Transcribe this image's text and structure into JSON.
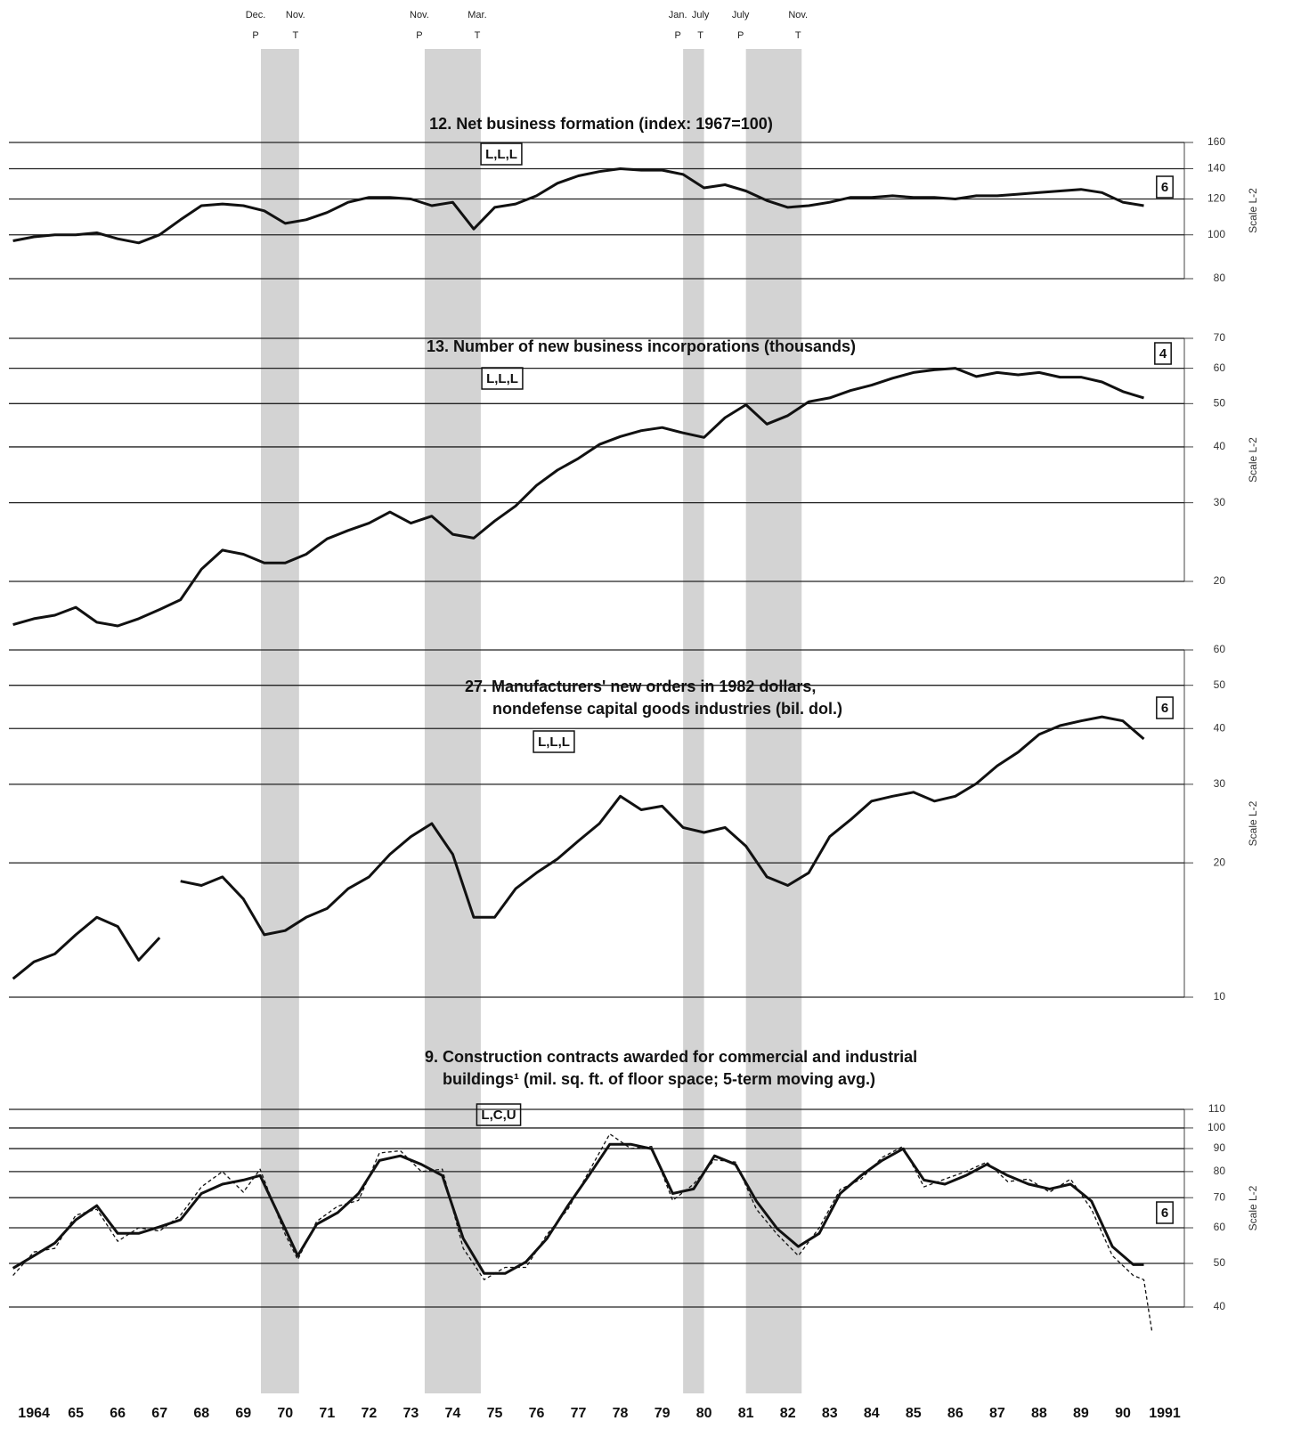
{
  "x_axis": {
    "xlim": [
      1963.86,
      1991.5
    ],
    "xticks": [
      1964,
      {
        "value": 1965,
        "label": "65"
      },
      {
        "value": 1966,
        "label": "66"
      },
      {
        "value": 1967,
        "label": "67"
      },
      {
        "value": 1968,
        "label": "68"
      },
      {
        "value": 1969,
        "label": "69"
      },
      {
        "value": 1970,
        "label": "70"
      },
      {
        "value": 1971,
        "label": "71"
      },
      {
        "value": 1972,
        "label": "72"
      },
      {
        "value": 1973,
        "label": "73"
      },
      {
        "value": 1974,
        "label": "74"
      },
      {
        "value": 1975,
        "label": "75"
      },
      {
        "value": 1976,
        "label": "76"
      },
      {
        "value": 1977,
        "label": "77"
      },
      {
        "value": 1978,
        "label": "78"
      },
      {
        "value": 1979,
        "label": "79"
      },
      {
        "value": 1980,
        "label": "80"
      },
      {
        "value": 1981,
        "label": "81"
      },
      {
        "value": 1982,
        "label": "82"
      },
      {
        "value": 1983,
        "label": "83"
      },
      {
        "value": 1984,
        "label": "84"
      },
      {
        "value": 1985,
        "label": "85"
      },
      {
        "value": 1986,
        "label": "86"
      },
      {
        "value": 1987,
        "label": "87"
      },
      {
        "value": 1988,
        "label": "88"
      },
      {
        "value": 1989,
        "label": "89"
      },
      {
        "value": 1990,
        "label": "90"
      },
      1991
    ]
  },
  "recessions": [
    {
      "peak": "Dec.",
      "peak_code": "P",
      "trough": "Nov.",
      "trough_code": "T",
      "start": 1969.92,
      "end": 1970.83
    },
    {
      "peak": "Nov.",
      "peak_code": "P",
      "trough": "Mar.",
      "trough_code": "T",
      "start": 1973.83,
      "end": 1975.17
    },
    {
      "peak": "Jan.",
      "peak_code": "P",
      "trough": "July",
      "trough_code": "T",
      "start": 1980.0,
      "end": 1980.5
    },
    {
      "peak": "July",
      "peak_code": "P",
      "trough": "Nov.",
      "trough_code": "T",
      "start": 1981.5,
      "end": 1982.83
    }
  ],
  "chart_data": [
    {
      "type": "line",
      "title": [
        "12. Net business formation (index: 1967=100)"
      ],
      "code": "L,L,L",
      "number": "6",
      "y_label": "Scale L-2",
      "log_scale": true,
      "ylim": [
        80,
        160
      ],
      "yticks": [
        80,
        100,
        120,
        140,
        160
      ],
      "grid": true,
      "series": [
        {
          "color": "#111111",
          "dashed": false,
          "x": [
            1964,
            1964.5,
            1965,
            1965.5,
            1966,
            1966.5,
            1967,
            1967.5,
            1968,
            1968.5,
            1969,
            1969.5,
            1970,
            1970.5,
            1971,
            1971.5,
            1972,
            1972.5,
            1973,
            1973.5,
            1974,
            1974.5,
            1975,
            1975.5,
            1976,
            1976.5,
            1977,
            1977.5,
            1978,
            1978.5,
            1979,
            1979.5,
            1980,
            1980.5,
            1981,
            1981.5,
            1982,
            1982.5,
            1983,
            1983.5,
            1984,
            1984.5,
            1985,
            1985.5,
            1986,
            1986.5,
            1987,
            1987.5,
            1988,
            1988.5,
            1989,
            1989.5,
            1990,
            1990.5,
            1991
          ],
          "values": [
            97,
            99,
            100,
            100,
            101,
            98,
            96,
            100,
            108,
            116,
            117,
            116,
            113,
            106,
            108,
            112,
            118,
            121,
            121,
            120,
            116,
            118,
            103,
            115,
            117,
            122,
            130,
            135,
            138,
            140,
            139,
            139,
            136,
            127,
            129,
            125,
            119,
            115,
            116,
            118,
            121,
            121,
            122,
            121,
            121,
            120,
            122,
            122,
            123,
            124,
            125,
            126,
            124,
            118,
            116
          ]
        }
      ]
    },
    {
      "type": "line",
      "title": [
        "13. Number of new business incorporations (thousands)"
      ],
      "code": "L,L,L",
      "number": "4",
      "y_label": "Scale L-2",
      "log_scale": true,
      "ylim": [
        20,
        70
      ],
      "yticks": [
        20,
        30,
        40,
        50,
        60,
        70
      ],
      "grid": true,
      "series": [
        {
          "color": "#111111",
          "dashed": false,
          "x": [
            1964,
            1964.5,
            1965,
            1965.5,
            1966,
            1966.5,
            1967,
            1967.5,
            1968,
            1968.5,
            1969,
            1969.5,
            1970,
            1970.5,
            1971,
            1971.5,
            1972,
            1972.5,
            1973,
            1973.5,
            1974,
            1974.5,
            1975,
            1975.5,
            1976,
            1976.5,
            1977,
            1977.5,
            1978,
            1978.5,
            1979,
            1979.5,
            1980,
            1980.5,
            1981,
            1981.5,
            1982,
            1982.5,
            1983,
            1983.5,
            1984,
            1984.5,
            1985,
            1985.5,
            1986,
            1986.5,
            1987,
            1987.5,
            1988,
            1988.5,
            1989,
            1989.5,
            1990,
            1990.5,
            1991
          ],
          "values": [
            16,
            16.5,
            16.8,
            17.5,
            16.2,
            15.9,
            16.5,
            17.3,
            18.2,
            21.3,
            23.5,
            23,
            22,
            22,
            23,
            24.9,
            26,
            27,
            28.6,
            27,
            28,
            25.5,
            25,
            27.3,
            29.5,
            32.8,
            35.5,
            37.7,
            40.5,
            42.2,
            43.5,
            44.2,
            43,
            42,
            46.5,
            49.7,
            45,
            47,
            50.5,
            51.5,
            53.5,
            55,
            57,
            58.7,
            59.5,
            60,
            57.5,
            58.7,
            58,
            58.7,
            57.3,
            57.3,
            55.9,
            53.2,
            51.5
          ]
        }
      ]
    },
    {
      "type": "line",
      "title": [
        "27. Manufacturers' new orders in 1982 dollars,",
        "nondefense capital goods industries (bil. dol.)"
      ],
      "code": "L,L,L",
      "number": "6",
      "y_label": "Scale L-2",
      "log_scale": true,
      "ylim": [
        10,
        60
      ],
      "yticks": [
        10,
        20,
        30,
        40,
        50,
        60
      ],
      "grid": true,
      "series": [
        {
          "color": "#111111",
          "dashed": false,
          "x": [
            1964,
            1964.5,
            1965,
            1965.5,
            1966,
            1966.5,
            1967,
            1967.5,
            1967.9,
            1968,
            1968.5,
            1969,
            1969.5,
            1970,
            1970.5,
            1971,
            1971.5,
            1972,
            1972.5,
            1973,
            1973.5,
            1974,
            1974.5,
            1975,
            1975.5,
            1976,
            1976.5,
            1977,
            1977.5,
            1978,
            1978.5,
            1979,
            1979.5,
            1980,
            1980.5,
            1981,
            1981.5,
            1982,
            1982.5,
            1983,
            1983.5,
            1984,
            1984.5,
            1985,
            1985.5,
            1986,
            1986.5,
            1987,
            1987.5,
            1988,
            1988.5,
            1989,
            1989.5,
            1990,
            1990.5,
            1991
          ],
          "values": [
            11,
            12,
            12.5,
            13.8,
            15.1,
            14.4,
            12.1,
            13.6,
            null,
            18.2,
            17.8,
            18.6,
            16.6,
            13.8,
            14.1,
            15.1,
            15.8,
            17.5,
            18.6,
            20.9,
            22.9,
            24.5,
            20.9,
            15.1,
            15.1,
            17.5,
            19,
            20.4,
            22.4,
            24.5,
            28.2,
            26.3,
            26.8,
            24,
            23.4,
            24,
            21.8,
            18.6,
            17.8,
            19,
            22.9,
            25,
            27.5,
            28.2,
            28.8,
            27.5,
            28.2,
            30.1,
            33,
            35.4,
            38.8,
            40.6,
            41.6,
            42.5,
            41.6,
            37.9
          ]
        }
      ]
    },
    {
      "type": "line",
      "title": [
        "9. Construction contracts awarded for commercial and industrial",
        "buildings¹ (mil. sq. ft. of floor space; 5-term moving avg.)"
      ],
      "code": "L,C,U",
      "number": "6",
      "y_label": "Scale L-2",
      "log_scale": true,
      "ylim": [
        40,
        110
      ],
      "yticks": [
        40,
        50,
        60,
        70,
        80,
        90,
        100,
        110
      ],
      "grid": true,
      "series": [
        {
          "color": "#111111",
          "dashed": true,
          "x": [
            1964,
            1964.5,
            1965,
            1965.5,
            1966,
            1966.5,
            1967,
            1967.5,
            1968,
            1968.5,
            1969,
            1969.5,
            1969.9,
            1970.5,
            1970.8,
            1971.25,
            1971.75,
            1972.25,
            1972.75,
            1973.25,
            1973.75,
            1974.25,
            1974.75,
            1975.25,
            1975.75,
            1976.25,
            1976.75,
            1977.25,
            1977.75,
            1978.25,
            1978.75,
            1979.25,
            1979.75,
            1980.25,
            1980.75,
            1981.25,
            1981.75,
            1982.25,
            1982.75,
            1983.25,
            1983.75,
            1984.25,
            1984.75,
            1985.25,
            1985.75,
            1986.25,
            1986.75,
            1987.25,
            1987.75,
            1988.25,
            1988.75,
            1989.25,
            1989.75,
            1990.25,
            1990.75,
            1991,
            1991.2
          ],
          "values": [
            47,
            53,
            54,
            64,
            66,
            56,
            60,
            59,
            64,
            74,
            80,
            72,
            81,
            58,
            51,
            62,
            67,
            69,
            88,
            89,
            80,
            81,
            54,
            46,
            49,
            49,
            58,
            66,
            80,
            97,
            90,
            91,
            69,
            75,
            85,
            84,
            66,
            58,
            52,
            60,
            73,
            77,
            86,
            91,
            74,
            77,
            80,
            84,
            76,
            77,
            72,
            77,
            66,
            52,
            47,
            46,
            35
          ]
        },
        {
          "color": "#111111",
          "dashed": false,
          "x": [
            1964,
            1964.5,
            1965,
            1965.5,
            1966,
            1966.5,
            1967,
            1967.5,
            1968,
            1968.5,
            1969,
            1969.5,
            1969.9,
            1970.5,
            1970.8,
            1971.25,
            1971.75,
            1972.25,
            1972.75,
            1973.25,
            1973.75,
            1974.25,
            1974.75,
            1975.25,
            1975.75,
            1976.25,
            1976.75,
            1977.25,
            1977.75,
            1978.25,
            1978.75,
            1979.25,
            1979.75,
            1980.25,
            1980.75,
            1981.25,
            1981.75,
            1982.25,
            1982.75,
            1983.25,
            1983.75,
            1984.25,
            1984.75,
            1985.25,
            1985.75,
            1986.25,
            1986.75,
            1987.25,
            1987.75,
            1988.25,
            1988.75,
            1989.25,
            1989.75,
            1990.25,
            1990.75,
            1991
          ],
          "values": [
            48.8,
            52,
            55.5,
            62.5,
            67.2,
            58.3,
            58.3,
            60.3,
            62.5,
            71.5,
            75,
            76.6,
            78.4,
            59.7,
            52,
            61.1,
            64.8,
            71.5,
            84.7,
            86.7,
            83,
            78.4,
            56.8,
            47.5,
            47.5,
            50.4,
            56.8,
            67.2,
            78.4,
            92,
            92,
            89.9,
            71.5,
            73.2,
            86.7,
            83,
            68.8,
            59.7,
            54.5,
            58.3,
            71.5,
            78.4,
            84.7,
            89.9,
            76.6,
            75,
            78.4,
            83,
            78.4,
            75,
            73.2,
            75,
            68.8,
            54.5,
            49.7,
            49.7
          ]
        }
      ]
    }
  ]
}
